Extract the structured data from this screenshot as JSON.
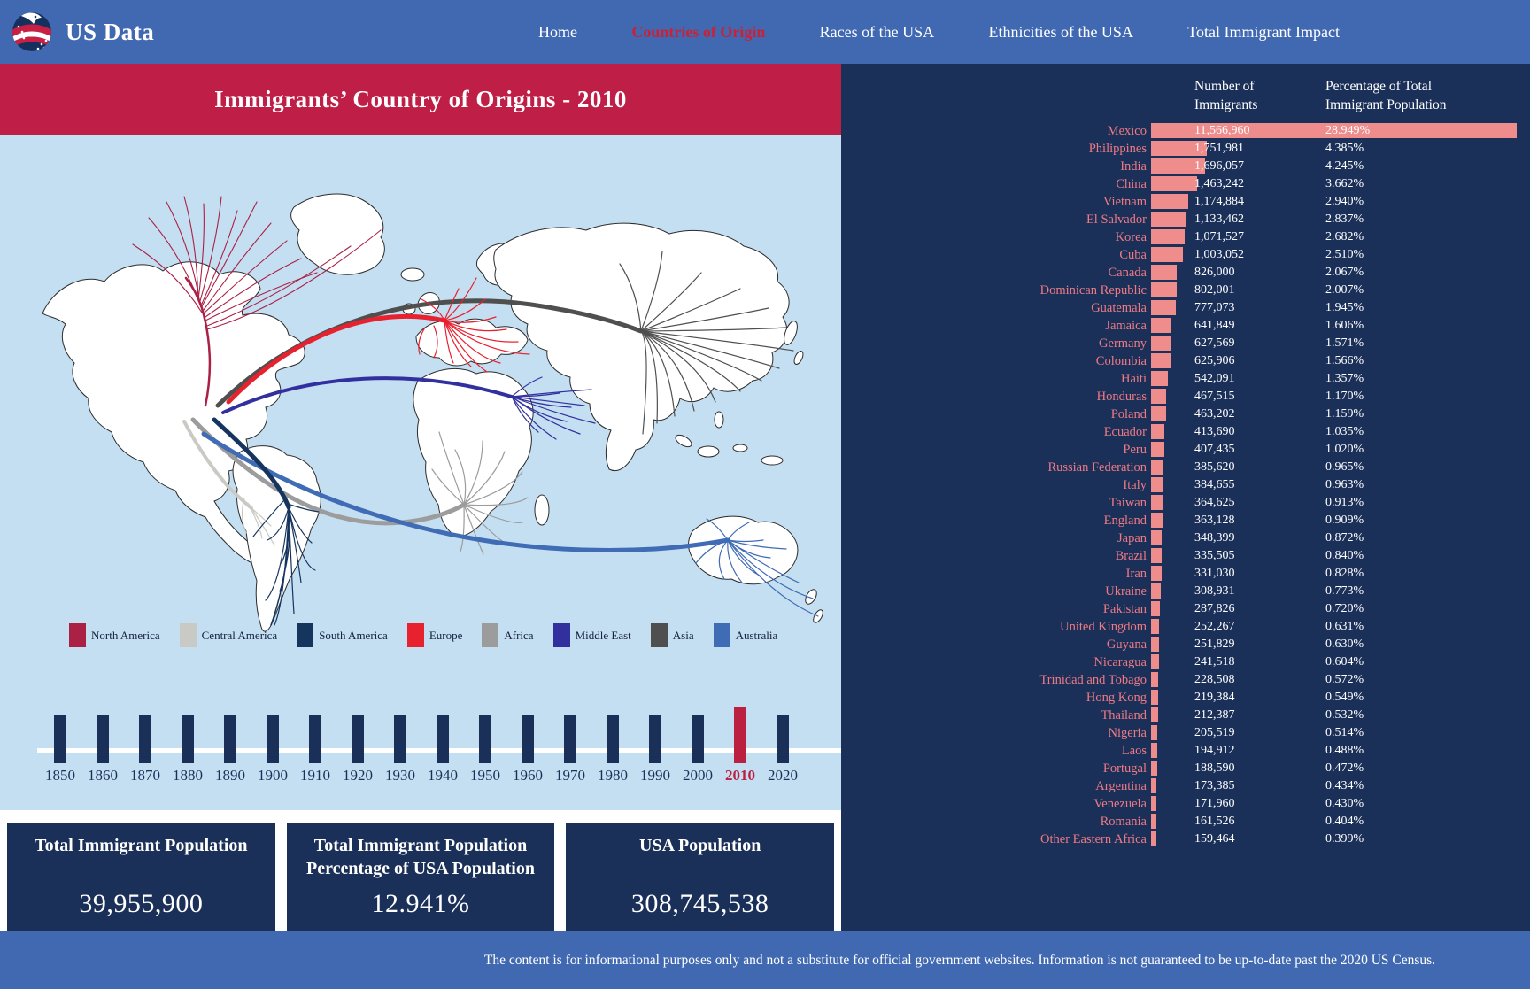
{
  "nav": {
    "brand": "US Data",
    "items": [
      {
        "label": "Home",
        "active": false
      },
      {
        "label": "Countries of Origin",
        "active": true
      },
      {
        "label": "Races of the USA",
        "active": false
      },
      {
        "label": "Ethnicities of the USA",
        "active": false
      },
      {
        "label": "Total Immigrant Impact",
        "active": false
      }
    ]
  },
  "header": {
    "title": "Immigrants’ Country of Origins - 2010"
  },
  "table": {
    "col1_header": "Number of Immigrants",
    "col2_header": "Percentage of Total Immigrant Population",
    "rows": [
      {
        "country": "Mexico",
        "immigrants": "11,566,960",
        "pct": "28.949%"
      },
      {
        "country": "Philippines",
        "immigrants": "1,751,981",
        "pct": "4.385%"
      },
      {
        "country": "India",
        "immigrants": "1,696,057",
        "pct": "4.245%"
      },
      {
        "country": "China",
        "immigrants": "1,463,242",
        "pct": "3.662%"
      },
      {
        "country": "Vietnam",
        "immigrants": "1,174,884",
        "pct": "2.940%"
      },
      {
        "country": "El Salvador",
        "immigrants": "1,133,462",
        "pct": "2.837%"
      },
      {
        "country": "Korea",
        "immigrants": "1,071,527",
        "pct": "2.682%"
      },
      {
        "country": "Cuba",
        "immigrants": "1,003,052",
        "pct": "2.510%"
      },
      {
        "country": "Canada",
        "immigrants": "826,000",
        "pct": "2.067%"
      },
      {
        "country": "Dominican Republic",
        "immigrants": "802,001",
        "pct": "2.007%"
      },
      {
        "country": "Guatemala",
        "immigrants": "777,073",
        "pct": "1.945%"
      },
      {
        "country": "Jamaica",
        "immigrants": "641,849",
        "pct": "1.606%"
      },
      {
        "country": "Germany",
        "immigrants": "627,569",
        "pct": "1.571%"
      },
      {
        "country": "Colombia",
        "immigrants": "625,906",
        "pct": "1.566%"
      },
      {
        "country": "Haiti",
        "immigrants": "542,091",
        "pct": "1.357%"
      },
      {
        "country": "Honduras",
        "immigrants": "467,515",
        "pct": "1.170%"
      },
      {
        "country": "Poland",
        "immigrants": "463,202",
        "pct": "1.159%"
      },
      {
        "country": "Ecuador",
        "immigrants": "413,690",
        "pct": "1.035%"
      },
      {
        "country": "Peru",
        "immigrants": "407,435",
        "pct": "1.020%"
      },
      {
        "country": "Russian Federation",
        "immigrants": "385,620",
        "pct": "0.965%"
      },
      {
        "country": "Italy",
        "immigrants": "384,655",
        "pct": "0.963%"
      },
      {
        "country": "Taiwan",
        "immigrants": "364,625",
        "pct": "0.913%"
      },
      {
        "country": "England",
        "immigrants": "363,128",
        "pct": "0.909%"
      },
      {
        "country": "Japan",
        "immigrants": "348,399",
        "pct": "0.872%"
      },
      {
        "country": "Brazil",
        "immigrants": "335,505",
        "pct": "0.840%"
      },
      {
        "country": "Iran",
        "immigrants": "331,030",
        "pct": "0.828%"
      },
      {
        "country": "Ukraine",
        "immigrants": "308,931",
        "pct": "0.773%"
      },
      {
        "country": "Pakistan",
        "immigrants": "287,826",
        "pct": "0.720%"
      },
      {
        "country": "United Kingdom",
        "immigrants": "252,267",
        "pct": "0.631%"
      },
      {
        "country": "Guyana",
        "immigrants": "251,829",
        "pct": "0.630%"
      },
      {
        "country": "Nicaragua",
        "immigrants": "241,518",
        "pct": "0.604%"
      },
      {
        "country": "Trinidad and Tobago",
        "immigrants": "228,508",
        "pct": "0.572%"
      },
      {
        "country": "Hong Kong",
        "immigrants": "219,384",
        "pct": "0.549%"
      },
      {
        "country": "Thailand",
        "immigrants": "212,387",
        "pct": "0.532%"
      },
      {
        "country": "Nigeria",
        "immigrants": "205,519",
        "pct": "0.514%"
      },
      {
        "country": "Laos",
        "immigrants": "194,912",
        "pct": "0.488%"
      },
      {
        "country": "Portugal",
        "immigrants": "188,590",
        "pct": "0.472%"
      },
      {
        "country": "Argentina",
        "immigrants": "173,385",
        "pct": "0.434%"
      },
      {
        "country": "Venezuela",
        "immigrants": "171,960",
        "pct": "0.430%"
      },
      {
        "country": "Romania",
        "immigrants": "161,526",
        "pct": "0.404%"
      },
      {
        "country": "Other Eastern Africa",
        "immigrants": "159,464",
        "pct": "0.399%"
      }
    ]
  },
  "map_legend": [
    {
      "key": "north-america",
      "label": "North America",
      "color": "#ab2045"
    },
    {
      "key": "central-america",
      "label": "Central America",
      "color": "#c9c9c5"
    },
    {
      "key": "south-america",
      "label": "South America",
      "color": "#16355e"
    },
    {
      "key": "europe",
      "label": "Europe",
      "color": "#e8212e"
    },
    {
      "key": "africa",
      "label": "Africa",
      "color": "#9c9c9c"
    },
    {
      "key": "middle-east",
      "label": "Middle East",
      "color": "#31309e"
    },
    {
      "key": "asia",
      "label": "Asia",
      "color": "#4f4f4f"
    },
    {
      "key": "australia",
      "label": "Australia",
      "color": "#3f6cb4"
    }
  ],
  "timeline": {
    "years": [
      "1850",
      "1860",
      "1870",
      "1880",
      "1890",
      "1900",
      "1910",
      "1920",
      "1930",
      "1940",
      "1950",
      "1960",
      "1970",
      "1980",
      "1990",
      "2000",
      "2010",
      "2020"
    ],
    "selected": "2010"
  },
  "stats": [
    {
      "title": "Total Immigrant Population",
      "value": "39,955,900"
    },
    {
      "title": "Total Immigrant Population Percentage of USA Population",
      "value": "12.941%"
    },
    {
      "title": "USA Population",
      "value": "308,745,538"
    }
  ],
  "footer": {
    "disclaimer": "The content is for informational purposes only and not a substitute for official government websites. Information is not guaranteed to be up-to-date past the 2020 US Census."
  },
  "colors": {
    "nav_blue": "#4069b1",
    "title_crimson": "#bf1e46",
    "panel_navy": "#1b3059",
    "map_background": "#c4def2",
    "bar_salmon": "#ef8c8c",
    "country_label": "#ee7a84",
    "active_nav_red": "#cb2138",
    "selected_year_red": "#bb2040"
  },
  "chart_data": {
    "type": "bar",
    "orientation": "horizontal",
    "title": "Immigrants’ Country of Origins - 2010",
    "categories": [
      "Mexico",
      "Philippines",
      "India",
      "China",
      "Vietnam",
      "El Salvador",
      "Korea",
      "Cuba",
      "Canada",
      "Dominican Republic",
      "Guatemala",
      "Jamaica",
      "Germany",
      "Colombia",
      "Haiti",
      "Honduras",
      "Poland",
      "Ecuador",
      "Peru",
      "Russian Federation",
      "Italy",
      "Taiwan",
      "England",
      "Japan",
      "Brazil",
      "Iran",
      "Ukraine",
      "Pakistan",
      "United Kingdom",
      "Guyana",
      "Nicaragua",
      "Trinidad and Tobago",
      "Hong Kong",
      "Thailand",
      "Nigeria",
      "Laos",
      "Portugal",
      "Argentina",
      "Venezuela",
      "Romania",
      "Other Eastern Africa"
    ],
    "series": [
      {
        "name": "Number of Immigrants",
        "values": [
          11566960,
          1751981,
          1696057,
          1463242,
          1174884,
          1133462,
          1071527,
          1003052,
          826000,
          802001,
          777073,
          641849,
          627569,
          625906,
          542091,
          467515,
          463202,
          413690,
          407435,
          385620,
          384655,
          364625,
          363128,
          348399,
          335505,
          331030,
          308931,
          287826,
          252267,
          251829,
          241518,
          228508,
          219384,
          212387,
          205519,
          194912,
          188590,
          173385,
          171960,
          161526,
          159464
        ]
      },
      {
        "name": "Percentage of Total Immigrant Population (%)",
        "values": [
          28.949,
          4.385,
          4.245,
          3.662,
          2.94,
          2.837,
          2.682,
          2.51,
          2.067,
          2.007,
          1.945,
          1.606,
          1.571,
          1.566,
          1.357,
          1.17,
          1.159,
          1.035,
          1.02,
          0.965,
          0.963,
          0.913,
          0.909,
          0.872,
          0.84,
          0.828,
          0.773,
          0.72,
          0.631,
          0.63,
          0.604,
          0.572,
          0.549,
          0.532,
          0.514,
          0.488,
          0.472,
          0.434,
          0.43,
          0.404,
          0.399
        ]
      }
    ],
    "legend_position": "none",
    "grid": false
  }
}
